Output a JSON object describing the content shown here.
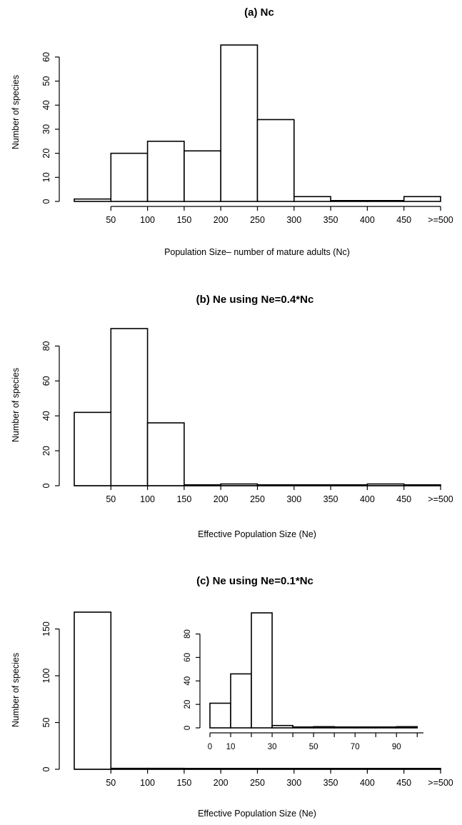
{
  "chart_data": [
    {
      "type": "bar",
      "title": "(a) Nc",
      "xlabel": "Population Size– number of mature adults (Nc)",
      "ylabel": "Number of species",
      "x_tick_labels": [
        "50",
        "100",
        "150",
        "200",
        "250",
        "300",
        "350",
        "400",
        "450",
        ">=500"
      ],
      "y_ticks": [
        "0",
        "10",
        "20",
        "30",
        "40",
        "50",
        "60"
      ],
      "ylim": [
        0,
        65
      ],
      "bins": [
        {
          "from": 0,
          "to": 50,
          "count": 1
        },
        {
          "from": 50,
          "to": 100,
          "count": 20
        },
        {
          "from": 100,
          "to": 150,
          "count": 25
        },
        {
          "from": 150,
          "to": 200,
          "count": 21
        },
        {
          "from": 200,
          "to": 250,
          "count": 65
        },
        {
          "from": 250,
          "to": 300,
          "count": 34
        },
        {
          "from": 300,
          "to": 350,
          "count": 2
        },
        {
          "from": 350,
          "to": 400,
          "count": 0
        },
        {
          "from": 400,
          "to": 450,
          "count": 0
        },
        {
          "from": 450,
          "to": 500,
          "count": 2
        }
      ]
    },
    {
      "type": "bar",
      "title": "(b) Ne using Ne=0.4*Nc",
      "xlabel": "Effective Population Size (Ne)",
      "ylabel": "Number of species",
      "x_tick_labels": [
        "50",
        "100",
        "150",
        "200",
        "250",
        "300",
        "350",
        "400",
        "450",
        ">=500"
      ],
      "y_ticks": [
        "0",
        "20",
        "40",
        "60",
        "80"
      ],
      "ylim": [
        0,
        90
      ],
      "bins": [
        {
          "from": 0,
          "to": 50,
          "count": 42
        },
        {
          "from": 50,
          "to": 100,
          "count": 90
        },
        {
          "from": 100,
          "to": 150,
          "count": 36
        },
        {
          "from": 150,
          "to": 200,
          "count": 0
        },
        {
          "from": 200,
          "to": 250,
          "count": 1
        },
        {
          "from": 250,
          "to": 300,
          "count": 0
        },
        {
          "from": 300,
          "to": 350,
          "count": 0
        },
        {
          "from": 350,
          "to": 400,
          "count": 0
        },
        {
          "from": 400,
          "to": 450,
          "count": 1
        },
        {
          "from": 450,
          "to": 500,
          "count": 0
        }
      ]
    },
    {
      "type": "bar",
      "title": "(c) Ne using Ne=0.1*Nc",
      "xlabel": "Effective Population Size (Ne)",
      "ylabel": "Number of species",
      "x_tick_labels": [
        "50",
        "100",
        "150",
        "200",
        "250",
        "300",
        "350",
        "400",
        "450",
        ">=500"
      ],
      "y_ticks": [
        "0",
        "50",
        "100",
        "150"
      ],
      "ylim": [
        0,
        168
      ],
      "bins": [
        {
          "from": 0,
          "to": 50,
          "count": 168
        },
        {
          "from": 50,
          "to": 100,
          "count": 1
        },
        {
          "from": 100,
          "to": 150,
          "count": 1
        },
        {
          "from": 150,
          "to": 200,
          "count": 0
        },
        {
          "from": 200,
          "to": 250,
          "count": 0
        },
        {
          "from": 250,
          "to": 300,
          "count": 0
        },
        {
          "from": 300,
          "to": 350,
          "count": 0
        },
        {
          "from": 350,
          "to": 400,
          "count": 0
        },
        {
          "from": 400,
          "to": 450,
          "count": 0
        },
        {
          "from": 450,
          "to": 500,
          "count": 0
        }
      ],
      "inset": {
        "type": "bar",
        "x_tick_labels": [
          "0",
          "10",
          "30",
          "50",
          "70",
          "90"
        ],
        "y_ticks": [
          "0",
          "20",
          "40",
          "60",
          "80"
        ],
        "ylim": [
          0,
          98
        ],
        "bins": [
          {
            "from": 0,
            "to": 10,
            "count": 21
          },
          {
            "from": 10,
            "to": 20,
            "count": 46
          },
          {
            "from": 20,
            "to": 30,
            "count": 98
          },
          {
            "from": 30,
            "to": 40,
            "count": 2
          },
          {
            "from": 40,
            "to": 50,
            "count": 0
          },
          {
            "from": 50,
            "to": 60,
            "count": 1
          },
          {
            "from": 60,
            "to": 70,
            "count": 0
          },
          {
            "from": 70,
            "to": 80,
            "count": 0
          },
          {
            "from": 80,
            "to": 90,
            "count": 0
          },
          {
            "from": 90,
            "to": 100,
            "count": 1
          }
        ]
      }
    }
  ]
}
